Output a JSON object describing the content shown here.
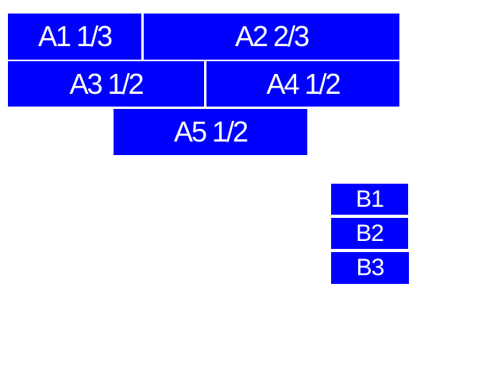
{
  "boxes": {
    "a1": "A1 1/3",
    "a2": "A2 2/3",
    "a3": "A3 1/2",
    "a4": "A4 1/2",
    "a5": "A5 1/2",
    "b1": "B1",
    "b2": "B2",
    "b3": "B3"
  },
  "colors": {
    "box_fill": "#0000ff",
    "box_text": "#ffffff",
    "page_background": "#ffffff"
  }
}
